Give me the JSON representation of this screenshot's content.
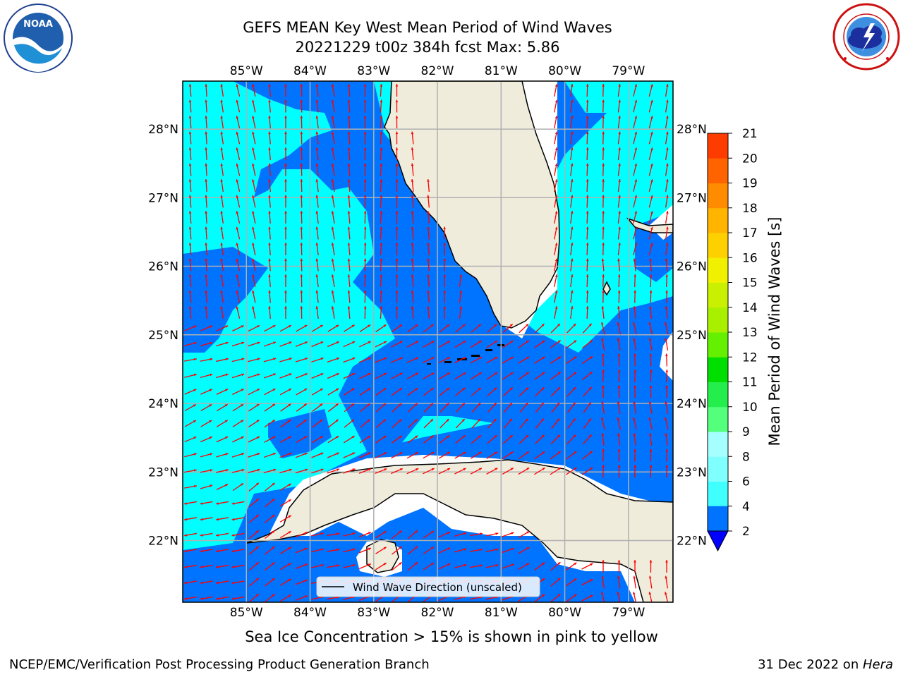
{
  "header": {
    "title_line1": "GEFS MEAN Key West Mean Period of Wind Waves",
    "title_line2": "20221229 t00z 384h fcst   Max: 5.86"
  },
  "logos": {
    "left": {
      "name": "noaa-logo",
      "text": "NOAA",
      "ring_text": "NATIONAL OCEANIC AND ATMOSPHERIC ADMINISTRATION · U.S. DEPARTMENT OF COMMERCE"
    },
    "right": {
      "name": "nws-logo",
      "ring_text": "NATIONAL WEATHER SERVICE"
    }
  },
  "map": {
    "lon_ticks": [
      "85°W",
      "84°W",
      "83°W",
      "82°W",
      "81°W",
      "80°W",
      "79°W"
    ],
    "lat_ticks": [
      "28°N",
      "27°N",
      "26°N",
      "25°N",
      "24°N",
      "23°N",
      "22°N"
    ],
    "lon_range": [
      -86.0,
      -78.3
    ],
    "lat_range": [
      21.1,
      28.7
    ],
    "legend_label": "Wind Wave Direction (unscaled)",
    "arrow_color": "#ff0000",
    "land_color": "#efecdc",
    "grid": true
  },
  "colorbar": {
    "label": "Mean Period of Wind Waves [s]",
    "ticks": [
      "2",
      "4",
      "6",
      "8",
      "9",
      "10",
      "11",
      "12",
      "13",
      "14",
      "15",
      "16",
      "17",
      "18",
      "19",
      "20",
      "21"
    ],
    "colors": [
      "#0073ff",
      "#00ffff",
      "#40ffff",
      "#80ffff",
      "#a6ffff",
      "#54ff7c",
      "#24ee4c",
      "#00df00",
      "#64f000",
      "#a8f000",
      "#c8f000",
      "#f0f000",
      "#ffd000",
      "#ffb400",
      "#ff8c00",
      "#ff6400",
      "#ff3c00",
      "#ff0000"
    ],
    "extend_color": "#0000ff"
  },
  "footer": {
    "note": "Sea Ice Concentration > 15% is shown in pink to yellow",
    "left": "NCEP/EMC/Verification Post Processing Product Generation Branch",
    "right_date": "31 Dec 2022 on ",
    "right_machine": "Hera"
  }
}
